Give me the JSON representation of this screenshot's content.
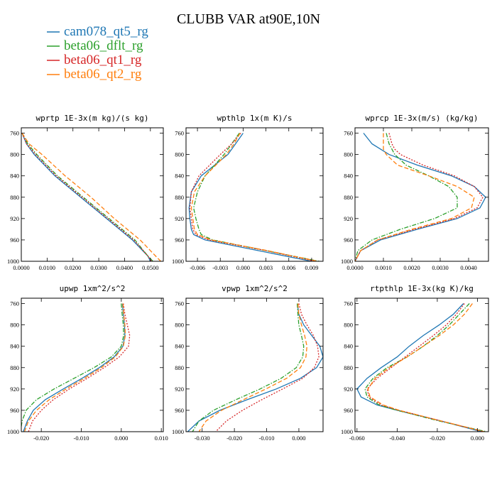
{
  "figure": {
    "title": "CLUBB VAR at90E,10N"
  },
  "legend": [
    {
      "label": "cam078_qt5_rg",
      "color": "#1f77b4",
      "dash": "solid"
    },
    {
      "label": "beta06_dflt_rg",
      "color": "#2ca02c",
      "dash": "dashdot"
    },
    {
      "label": "beta06_qt1_rg",
      "color": "#d62728",
      "dash": "dotted"
    },
    {
      "label": "beta06_qt2_rg",
      "color": "#ff7f0e",
      "dash": "dashed"
    }
  ],
  "chart_data": [
    {
      "type": "line",
      "title": "wprtp  1E-3x(m kg)/(s kg)",
      "xlim": [
        0.0,
        0.055
      ],
      "ylim": [
        1000,
        750
      ],
      "xticks": [
        0.0,
        0.01,
        0.02,
        0.03,
        0.04,
        0.05
      ],
      "xtick_labels": [
        "0.0000",
        "0.0100",
        "0.0200",
        "0.0300",
        "0.0400",
        "0.0500"
      ],
      "yticks": [
        760,
        800,
        840,
        880,
        920,
        960,
        1000
      ],
      "series": [
        {
          "name": "cam078_qt5_rg",
          "y": [
            760,
            780,
            800,
            840,
            880,
            920,
            960,
            990,
            1000
          ],
          "x": [
            0.0003,
            0.002,
            0.005,
            0.013,
            0.023,
            0.033,
            0.043,
            0.049,
            0.05
          ]
        },
        {
          "name": "beta06_dflt_rg",
          "y": [
            760,
            780,
            800,
            840,
            880,
            920,
            960,
            990,
            1000
          ],
          "x": [
            0.0003,
            0.0025,
            0.006,
            0.014,
            0.024,
            0.034,
            0.044,
            0.049,
            0.051
          ]
        },
        {
          "name": "beta06_qt1_rg",
          "y": [
            760,
            780,
            800,
            840,
            880,
            920,
            960,
            990,
            1000
          ],
          "x": [
            0.0003,
            0.002,
            0.0055,
            0.0135,
            0.0235,
            0.0335,
            0.0435,
            0.049,
            0.0505
          ]
        },
        {
          "name": "beta06_qt2_rg",
          "y": [
            760,
            780,
            800,
            840,
            880,
            920,
            960,
            990,
            1000
          ],
          "x": [
            0.0003,
            0.003,
            0.008,
            0.017,
            0.027,
            0.036,
            0.046,
            0.052,
            0.054
          ]
        }
      ]
    },
    {
      "type": "line",
      "title": "wpthlp  1x(m K)/s",
      "xlim": [
        -0.0075,
        0.0105
      ],
      "ylim": [
        1000,
        750
      ],
      "xticks": [
        -0.006,
        -0.003,
        0.0,
        0.003,
        0.006,
        0.009
      ],
      "xtick_labels": [
        "-0.006",
        "-0.003",
        "0.000",
        "0.003",
        "0.006",
        "0.009"
      ],
      "yticks": [
        760,
        800,
        840,
        880,
        920,
        960,
        1000
      ],
      "series": [
        {
          "name": "cam078_qt5_rg",
          "y": [
            760,
            780,
            800,
            840,
            870,
            900,
            920,
            940,
            950,
            960,
            980,
            1000
          ],
          "x": [
            0.0,
            -0.001,
            -0.002,
            -0.0055,
            -0.0068,
            -0.0071,
            -0.007,
            -0.0068,
            -0.0065,
            -0.005,
            0.002,
            0.009
          ]
        },
        {
          "name": "beta06_dflt_rg",
          "y": [
            760,
            780,
            800,
            840,
            870,
            900,
            920,
            940,
            950,
            960,
            980,
            1000
          ],
          "x": [
            -0.0005,
            -0.0015,
            -0.0025,
            -0.005,
            -0.006,
            -0.0065,
            -0.0062,
            -0.0058,
            -0.0055,
            -0.004,
            0.003,
            0.01
          ]
        },
        {
          "name": "beta06_qt1_rg",
          "y": [
            760,
            780,
            800,
            840,
            870,
            900,
            920,
            940,
            950,
            960,
            980,
            1000
          ],
          "x": [
            -0.0003,
            -0.0015,
            -0.003,
            -0.0058,
            -0.0068,
            -0.007,
            -0.0068,
            -0.0066,
            -0.0062,
            -0.0045,
            0.003,
            0.0095
          ]
        },
        {
          "name": "beta06_qt2_rg",
          "y": [
            760,
            780,
            800,
            840,
            870,
            900,
            920,
            940,
            950,
            960,
            980,
            1000
          ],
          "x": [
            -0.0004,
            -0.0012,
            -0.0022,
            -0.005,
            -0.0064,
            -0.0068,
            -0.0066,
            -0.0064,
            -0.006,
            -0.0042,
            0.0032,
            0.0098
          ]
        }
      ]
    },
    {
      "type": "line",
      "title": "wprcp  1E-3x(m/s) (kg/kg)",
      "xlim": [
        0.0,
        0.0047
      ],
      "ylim": [
        1000,
        750
      ],
      "xticks": [
        0.0,
        0.001,
        0.002,
        0.003,
        0.004
      ],
      "xtick_labels": [
        "0.0000",
        "0.0010",
        "0.0020",
        "0.0030",
        "0.0040"
      ],
      "yticks": [
        760,
        800,
        840,
        880,
        920,
        960,
        1000
      ],
      "series": [
        {
          "name": "cam078_qt5_rg",
          "y": [
            760,
            780,
            790,
            800,
            820,
            840,
            860,
            880,
            900,
            920,
            940,
            960,
            980,
            1000
          ],
          "x": [
            0.0003,
            0.0006,
            0.0009,
            0.0012,
            0.0022,
            0.0034,
            0.0042,
            0.0046,
            0.0044,
            0.0036,
            0.0022,
            0.0009,
            0.0002,
            0.0
          ]
        },
        {
          "name": "beta06_dflt_rg",
          "y": [
            760,
            780,
            790,
            800,
            820,
            840,
            860,
            880,
            900,
            920,
            940,
            960,
            980,
            1000
          ],
          "x": [
            0.0011,
            0.0012,
            0.0013,
            0.0014,
            0.0018,
            0.0026,
            0.0033,
            0.0036,
            0.0036,
            0.0028,
            0.0016,
            0.0006,
            0.0001,
            0.0
          ]
        },
        {
          "name": "beta06_qt1_rg",
          "y": [
            760,
            780,
            790,
            800,
            820,
            840,
            860,
            880,
            900,
            920,
            940,
            960,
            980,
            1000
          ],
          "x": [
            0.0012,
            0.0013,
            0.0014,
            0.0016,
            0.0024,
            0.0035,
            0.0042,
            0.0045,
            0.0043,
            0.0035,
            0.0021,
            0.0008,
            0.0002,
            0.0
          ]
        },
        {
          "name": "beta06_qt2_rg",
          "y": [
            760,
            780,
            790,
            800,
            820,
            840,
            860,
            880,
            900,
            920,
            940,
            960,
            980,
            1000
          ],
          "x": [
            0.001,
            0.001,
            0.001,
            0.0011,
            0.0015,
            0.0026,
            0.0036,
            0.0042,
            0.0041,
            0.0034,
            0.002,
            0.0008,
            0.0002,
            0.0
          ]
        }
      ]
    },
    {
      "type": "line",
      "title": "upwp  1xm^2/s^2",
      "xlim": [
        -0.025,
        0.0105
      ],
      "ylim": [
        1000,
        750
      ],
      "xticks": [
        -0.02,
        -0.01,
        0.0,
        0.01
      ],
      "xtick_labels": [
        "-0.020",
        "-0.010",
        "0.000",
        "0.010"
      ],
      "yticks": [
        760,
        800,
        840,
        880,
        920,
        960,
        1000
      ],
      "series": [
        {
          "name": "cam078_qt5_rg",
          "y": [
            760,
            780,
            800,
            820,
            840,
            860,
            880,
            900,
            920,
            940,
            960,
            980,
            1000
          ],
          "x": [
            0.0003,
            0.0005,
            0.0008,
            0.0009,
            0.0004,
            -0.0018,
            -0.0055,
            -0.0098,
            -0.0145,
            -0.019,
            -0.022,
            -0.0235,
            -0.0245
          ]
        },
        {
          "name": "beta06_dflt_rg",
          "y": [
            760,
            780,
            800,
            820,
            840,
            860,
            880,
            900,
            920,
            940,
            960,
            980,
            1000
          ],
          "x": [
            0.0,
            0.0002,
            0.0005,
            0.0006,
            0.0,
            -0.0025,
            -0.0068,
            -0.0118,
            -0.0168,
            -0.0212,
            -0.0238,
            -0.0248,
            -0.0252
          ]
        },
        {
          "name": "beta06_qt1_rg",
          "y": [
            760,
            780,
            800,
            820,
            840,
            860,
            880,
            900,
            920,
            940,
            960,
            980,
            1000
          ],
          "x": [
            0.0005,
            0.0009,
            0.0015,
            0.0021,
            0.0018,
            -0.0005,
            -0.0043,
            -0.0085,
            -0.013,
            -0.017,
            -0.02,
            -0.0222,
            -0.0232
          ]
        },
        {
          "name": "beta06_qt2_rg",
          "y": [
            760,
            780,
            800,
            820,
            840,
            860,
            880,
            900,
            920,
            940,
            960,
            980,
            1000
          ],
          "x": [
            0.0004,
            0.0006,
            0.0009,
            0.001,
            0.0005,
            -0.0015,
            -0.005,
            -0.0092,
            -0.0138,
            -0.018,
            -0.0212,
            -0.0232,
            -0.0242
          ]
        }
      ]
    },
    {
      "type": "line",
      "title": "vpwp  1xm^2/s^2",
      "xlim": [
        -0.035,
        0.0075
      ],
      "ylim": [
        1000,
        750
      ],
      "xticks": [
        -0.03,
        -0.02,
        -0.01,
        0.0
      ],
      "xtick_labels": [
        "-0.030",
        "-0.020",
        "-0.010",
        "0.000"
      ],
      "yticks": [
        760,
        800,
        840,
        880,
        920,
        960,
        1000
      ],
      "series": [
        {
          "name": "cam078_qt5_rg",
          "y": [
            760,
            780,
            800,
            820,
            840,
            860,
            880,
            900,
            920,
            940,
            960,
            980,
            1000
          ],
          "x": [
            -0.0005,
            0.0,
            0.0015,
            0.004,
            0.0065,
            0.0075,
            0.0055,
            0.0005,
            -0.007,
            -0.016,
            -0.0245,
            -0.031,
            -0.0345
          ]
        },
        {
          "name": "beta06_dflt_rg",
          "y": [
            760,
            780,
            800,
            820,
            840,
            860,
            880,
            900,
            920,
            940,
            960,
            980,
            1000
          ],
          "x": [
            -0.0005,
            -0.0003,
            0.0,
            0.0008,
            0.0015,
            0.0012,
            -0.0008,
            -0.0055,
            -0.012,
            -0.0195,
            -0.0265,
            -0.031,
            -0.033
          ]
        },
        {
          "name": "beta06_qt1_rg",
          "y": [
            760,
            780,
            800,
            820,
            840,
            860,
            880,
            900,
            920,
            940,
            960,
            980,
            1000
          ],
          "x": [
            0.0,
            0.0008,
            0.0025,
            0.0045,
            0.0058,
            0.0062,
            0.0048,
            0.0012,
            -0.005,
            -0.0115,
            -0.0175,
            -0.0225,
            -0.0258
          ]
        },
        {
          "name": "beta06_qt2_rg",
          "y": [
            760,
            780,
            800,
            820,
            840,
            860,
            880,
            900,
            920,
            940,
            960,
            980,
            1000
          ],
          "x": [
            -0.0003,
            0.0,
            0.0008,
            0.0018,
            0.0025,
            0.0022,
            0.0005,
            -0.0038,
            -0.0102,
            -0.0172,
            -0.024,
            -0.0288,
            -0.031
          ]
        }
      ]
    },
    {
      "type": "line",
      "title": "rtpthlp  1E-3x(kg K)/kg",
      "xlim": [
        -0.061,
        0.0055
      ],
      "ylim": [
        1000,
        750
      ],
      "xticks": [
        -0.06,
        -0.04,
        -0.02,
        0.0
      ],
      "xtick_labels": [
        "-0.060",
        "-0.040",
        "-0.020",
        "0.000"
      ],
      "yticks": [
        760,
        800,
        840,
        880,
        920,
        960,
        1000
      ],
      "series": [
        {
          "name": "cam078_qt5_rg",
          "y": [
            760,
            780,
            800,
            820,
            840,
            860,
            880,
            900,
            920,
            935,
            950,
            960,
            980,
            1000
          ],
          "x": [
            -0.007,
            -0.012,
            -0.019,
            -0.027,
            -0.034,
            -0.04,
            -0.048,
            -0.055,
            -0.06,
            -0.058,
            -0.05,
            -0.04,
            -0.018,
            0.002
          ]
        },
        {
          "name": "beta06_dflt_rg",
          "y": [
            760,
            780,
            800,
            820,
            840,
            860,
            880,
            900,
            920,
            935,
            950,
            960,
            980,
            1000
          ],
          "x": [
            -0.004,
            -0.009,
            -0.014,
            -0.02,
            -0.027,
            -0.035,
            -0.045,
            -0.052,
            -0.056,
            -0.055,
            -0.049,
            -0.04,
            -0.019,
            0.0045
          ]
        },
        {
          "name": "beta06_qt1_rg",
          "y": [
            760,
            780,
            800,
            820,
            840,
            860,
            880,
            900,
            920,
            935,
            950,
            960,
            980,
            1000
          ],
          "x": [
            -0.0065,
            -0.0105,
            -0.0155,
            -0.022,
            -0.029,
            -0.036,
            -0.043,
            -0.05,
            -0.055,
            -0.054,
            -0.048,
            -0.039,
            -0.018,
            0.003
          ]
        },
        {
          "name": "beta06_qt2_rg",
          "y": [
            760,
            780,
            800,
            820,
            840,
            860,
            880,
            900,
            920,
            935,
            950,
            960,
            980,
            1000
          ],
          "x": [
            -0.0025,
            -0.0065,
            -0.012,
            -0.019,
            -0.027,
            -0.035,
            -0.044,
            -0.051,
            -0.0545,
            -0.0535,
            -0.047,
            -0.039,
            -0.018,
            0.0035
          ]
        }
      ]
    }
  ]
}
